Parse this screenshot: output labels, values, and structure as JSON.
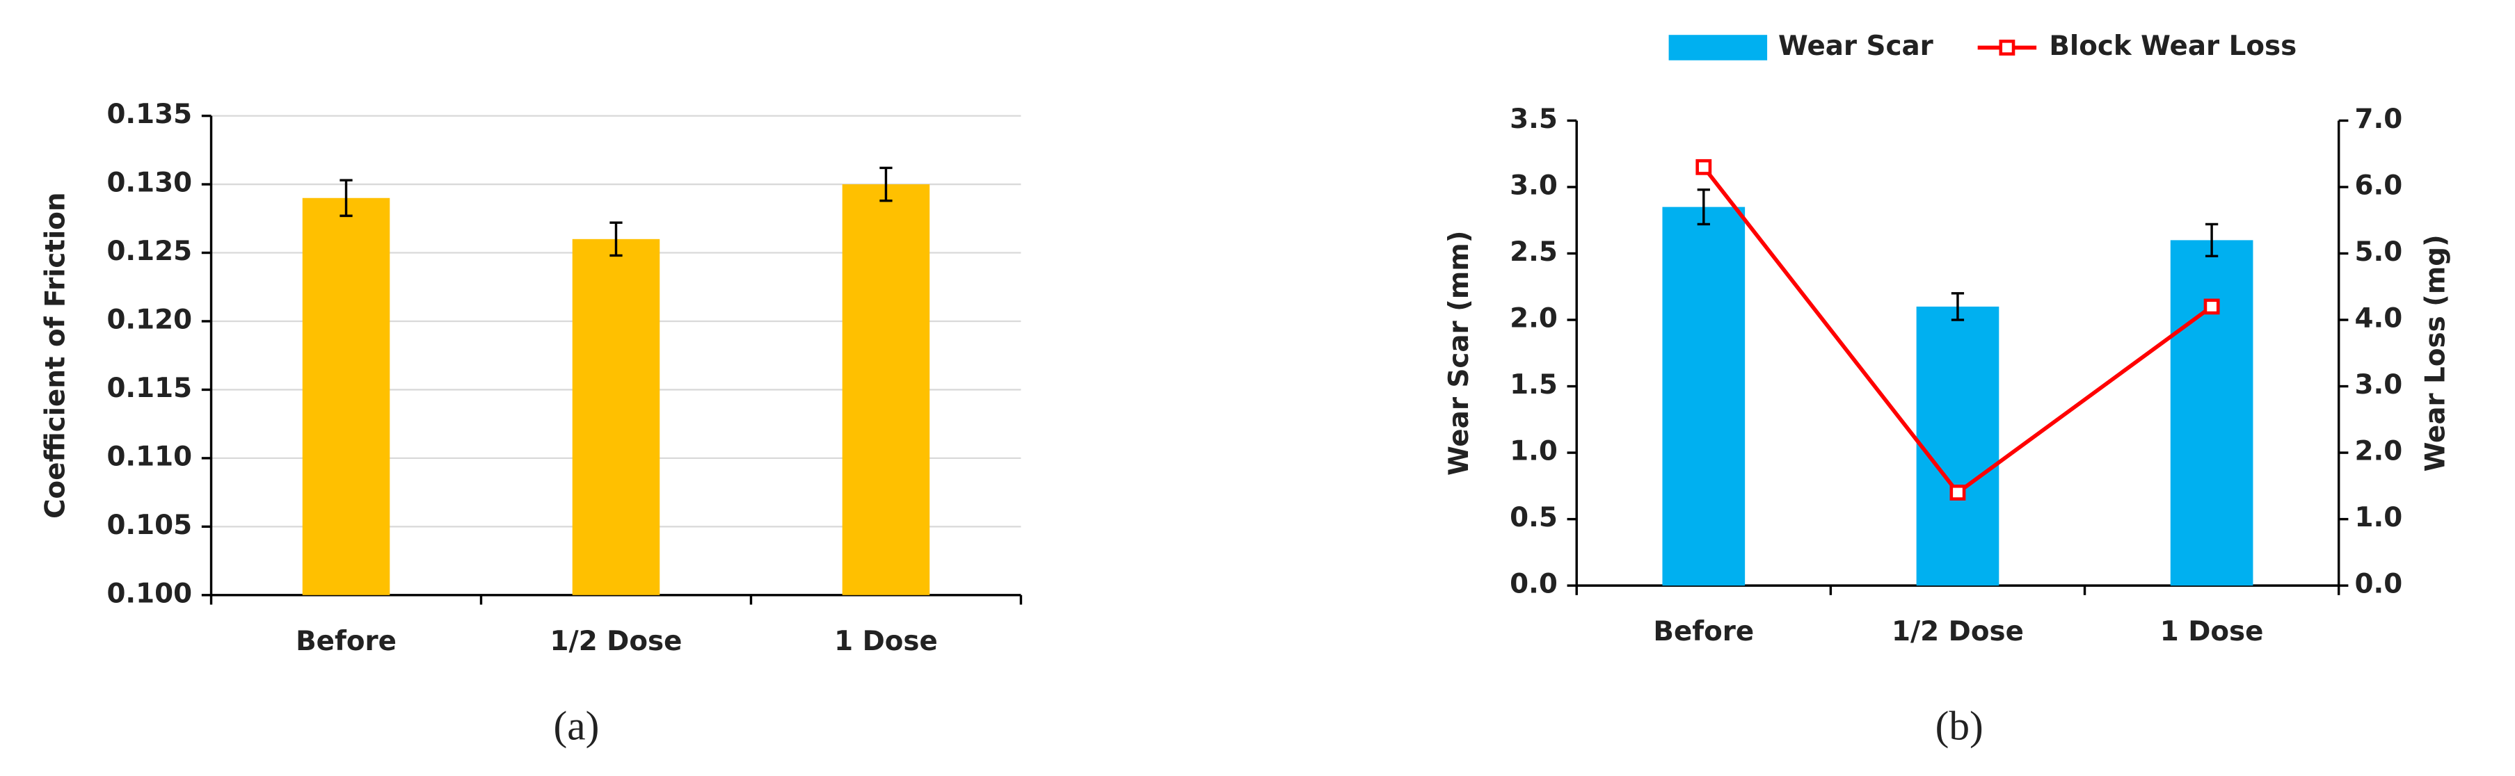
{
  "chart_data": [
    {
      "type": "bar",
      "caption": "(a)",
      "y_label": "Coefficient of Friction",
      "categories": [
        "Before",
        "1/2 Dose",
        "1 Dose"
      ],
      "values": [
        0.129,
        0.126,
        0.13
      ],
      "errors": [
        0.0013,
        0.0012,
        0.0012
      ],
      "color": "#FFC000",
      "ylim": [
        0.1,
        0.135
      ],
      "yticks": [
        {
          "value": 0.1,
          "label": "0.100"
        },
        {
          "value": 0.105,
          "label": "0.105"
        },
        {
          "value": 0.11,
          "label": "0.110"
        },
        {
          "value": 0.115,
          "label": "0.115"
        },
        {
          "value": 0.12,
          "label": "0.120"
        },
        {
          "value": 0.125,
          "label": "0.125"
        },
        {
          "value": 0.13,
          "label": "0.130"
        },
        {
          "value": 0.135,
          "label": "0.135"
        }
      ],
      "grid": true
    },
    {
      "type": "combo",
      "caption": "(b)",
      "y_label": "Wear Scar (mm)",
      "y2_label": "Wear Loss (mg)",
      "categories": [
        "Before",
        "1/2 Dose",
        "1 Dose"
      ],
      "series": [
        {
          "name": "Wear Scar",
          "type": "bar",
          "color": "#00B0F0",
          "values": [
            2.85,
            2.1,
            2.6
          ],
          "errors": [
            0.13,
            0.1,
            0.12
          ]
        },
        {
          "name": "Block Wear Loss",
          "type": "line",
          "axis": "y2",
          "color": "#FF0000",
          "values": [
            6.3,
            1.4,
            4.2
          ]
        }
      ],
      "ylim": [
        0,
        3.5
      ],
      "yticks": [
        {
          "value": 0,
          "label": "0.0"
        },
        {
          "value": 0.5,
          "label": "0.5"
        },
        {
          "value": 1,
          "label": "1.0"
        },
        {
          "value": 1.5,
          "label": "1.5"
        },
        {
          "value": 2,
          "label": "2.0"
        },
        {
          "value": 2.5,
          "label": "2.5"
        },
        {
          "value": 3,
          "label": "3.0"
        },
        {
          "value": 3.5,
          "label": "3.5"
        }
      ],
      "y2lim": [
        0,
        7
      ],
      "y2ticks": [
        {
          "value": 0,
          "label": "0.0"
        },
        {
          "value": 1,
          "label": "1.0"
        },
        {
          "value": 2,
          "label": "2.0"
        },
        {
          "value": 3,
          "label": "3.0"
        },
        {
          "value": 4,
          "label": "4.0"
        },
        {
          "value": 5,
          "label": "5.0"
        },
        {
          "value": 6,
          "label": "6.0"
        },
        {
          "value": 7,
          "label": "7.0"
        }
      ],
      "grid": false,
      "legend": "top"
    }
  ]
}
